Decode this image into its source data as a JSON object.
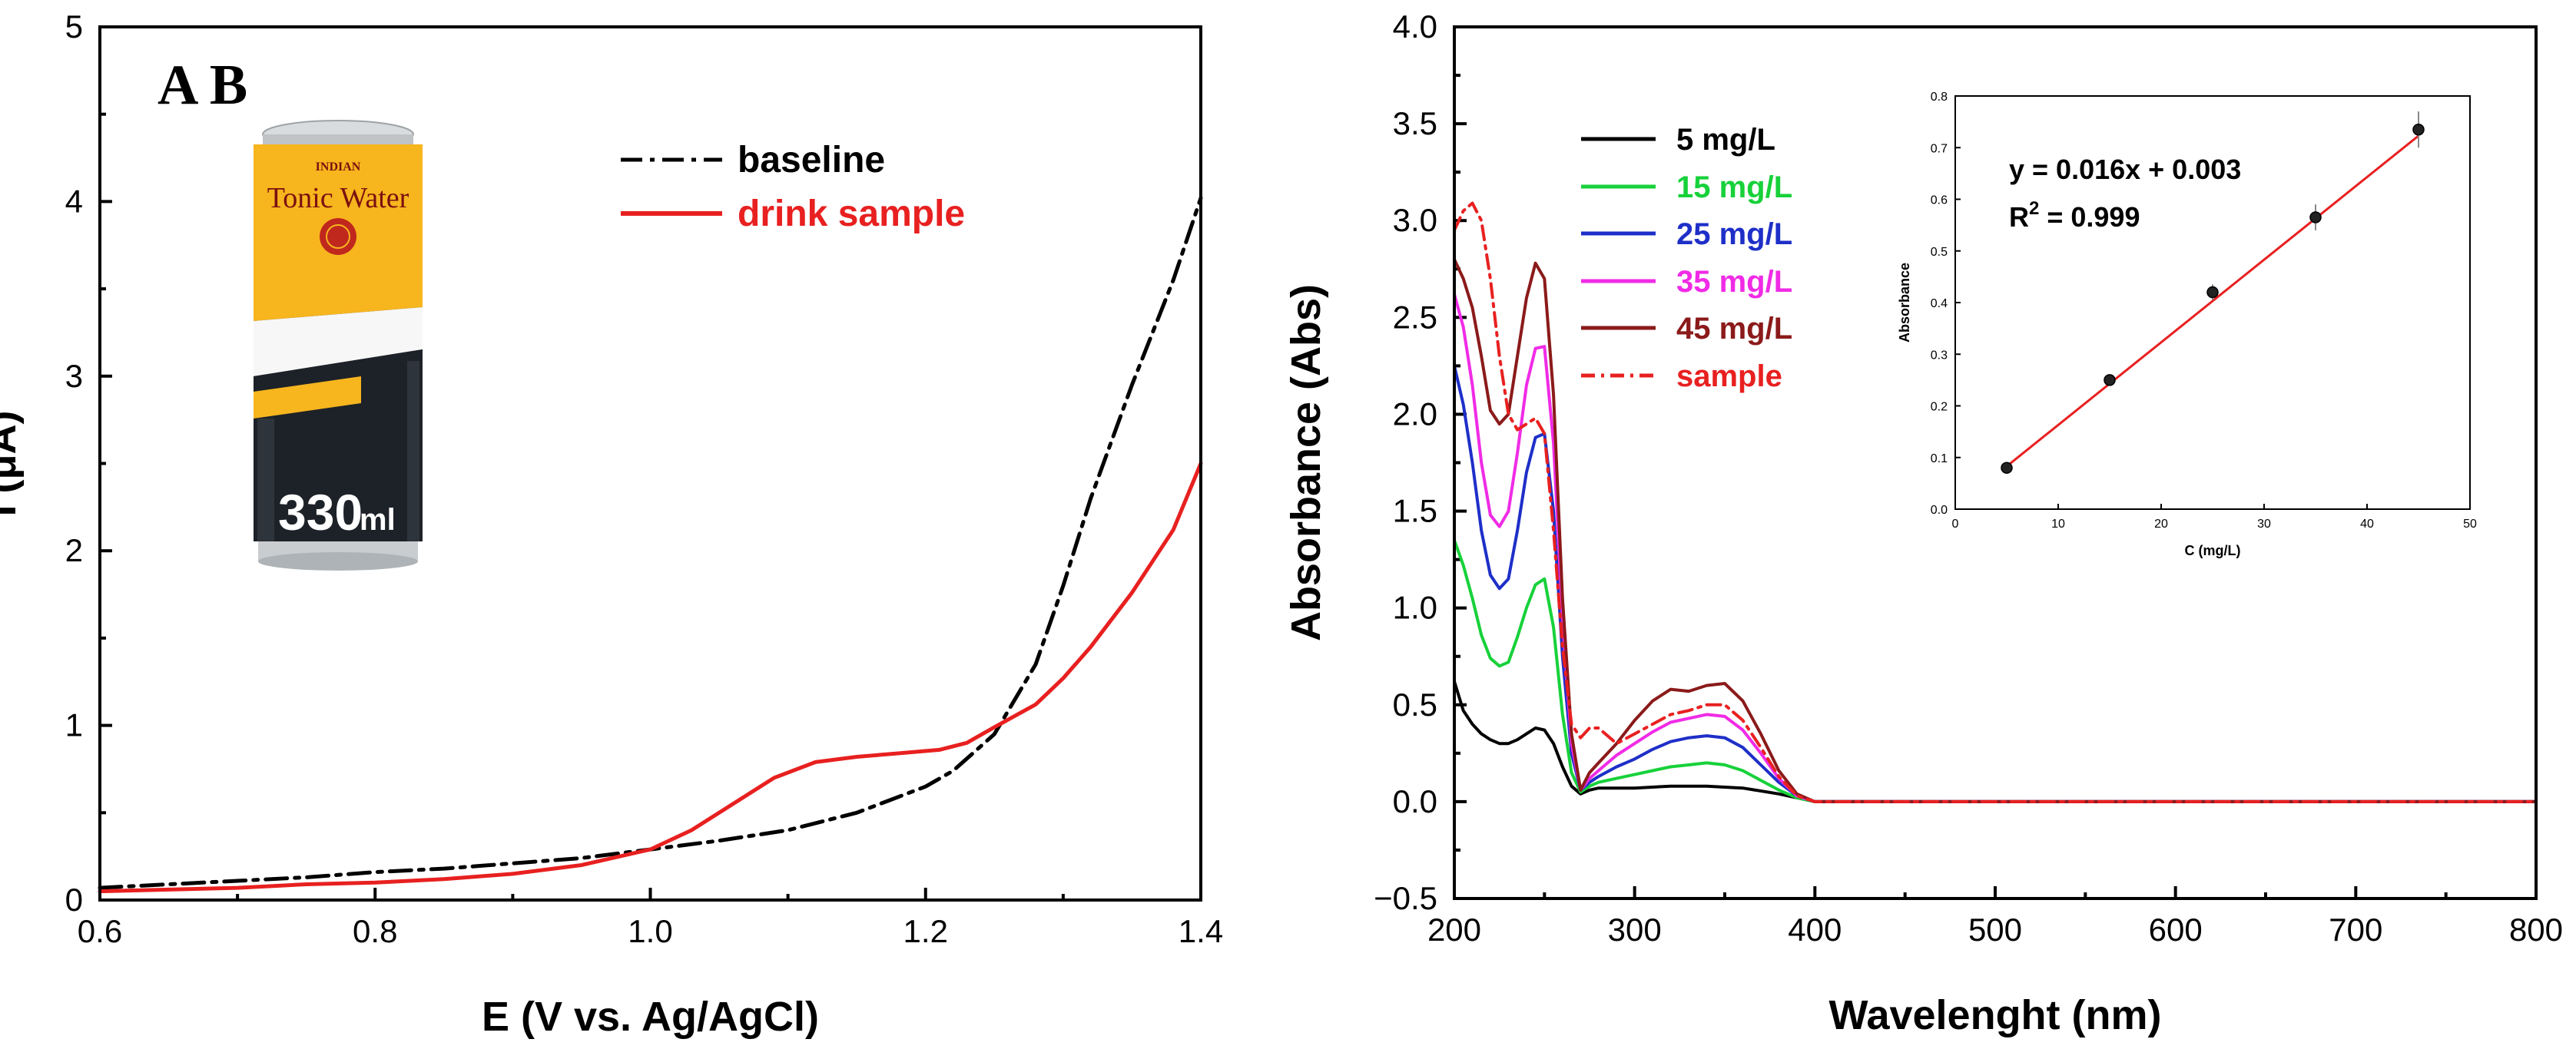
{
  "panel_labels": {
    "label": "A B"
  },
  "can": {
    "brand_small": "INDIAN",
    "product": "Tonic Water",
    "volume_number": "330",
    "volume_unit": "ml",
    "colors": {
      "yellow": "#F7B51E",
      "black": "#1D2228",
      "silver": "#C9CDD0"
    }
  },
  "chart_data": [
    {
      "id": "A",
      "type": "line",
      "title": "",
      "xlabel": "E (V vs. Ag/AgCl)",
      "ylabel": "I (μA)",
      "xlim": [
        0.6,
        1.4
      ],
      "ylim": [
        0,
        5
      ],
      "xticks": [
        0.6,
        0.8,
        1.0,
        1.2,
        1.4
      ],
      "xtick_labels": [
        "0.6",
        "0.8",
        "1.0",
        "1.2",
        "1.4"
      ],
      "yticks": [
        0,
        1,
        2,
        3,
        4,
        5
      ],
      "ytick_labels": [
        "0",
        "1",
        "2",
        "3",
        "4",
        "5"
      ],
      "legend_position": "top-center",
      "series": [
        {
          "name": "baseline",
          "color": "#000000",
          "style": "dash-dot",
          "x": [
            0.6,
            0.65,
            0.7,
            0.75,
            0.8,
            0.85,
            0.9,
            0.95,
            1.0,
            1.05,
            1.1,
            1.15,
            1.2,
            1.22,
            1.25,
            1.28,
            1.3,
            1.32,
            1.35,
            1.38,
            1.4
          ],
          "y": [
            0.07,
            0.09,
            0.11,
            0.13,
            0.16,
            0.18,
            0.21,
            0.24,
            0.29,
            0.34,
            0.4,
            0.5,
            0.65,
            0.74,
            0.95,
            1.35,
            1.8,
            2.3,
            2.95,
            3.55,
            4.02
          ]
        },
        {
          "name": "drink sample",
          "color": "#E82020",
          "style": "solid",
          "x": [
            0.6,
            0.65,
            0.7,
            0.75,
            0.8,
            0.85,
            0.9,
            0.95,
            1.0,
            1.03,
            1.06,
            1.09,
            1.12,
            1.15,
            1.18,
            1.21,
            1.23,
            1.25,
            1.28,
            1.3,
            1.32,
            1.35,
            1.38,
            1.4
          ],
          "y": [
            0.05,
            0.06,
            0.07,
            0.09,
            0.1,
            0.12,
            0.15,
            0.2,
            0.29,
            0.4,
            0.55,
            0.7,
            0.79,
            0.82,
            0.84,
            0.86,
            0.9,
            0.99,
            1.12,
            1.27,
            1.45,
            1.76,
            2.12,
            2.5
          ]
        }
      ]
    },
    {
      "id": "B",
      "type": "line",
      "title": "",
      "xlabel": "Wavelenght (nm)",
      "ylabel": "Absorbance (Abs)",
      "xlim": [
        200,
        800
      ],
      "ylim": [
        -0.5,
        4.0
      ],
      "xticks": [
        200,
        300,
        400,
        500,
        600,
        700,
        800
      ],
      "xtick_labels": [
        "200",
        "300",
        "400",
        "500",
        "600",
        "700",
        "800"
      ],
      "yticks": [
        -0.5,
        0.0,
        0.5,
        1.0,
        1.5,
        2.0,
        2.5,
        3.0,
        3.5,
        4.0
      ],
      "ytick_labels": [
        "−0.5",
        "0.0",
        "0.5",
        "1.0",
        "1.5",
        "2.0",
        "2.5",
        "3.0",
        "3.5",
        "4.0"
      ],
      "legend_position": "top-left",
      "series": [
        {
          "name": "5 mg/L",
          "color": "#000000",
          "style": "solid",
          "x": [
            200,
            205,
            210,
            215,
            220,
            225,
            230,
            235,
            240,
            245,
            250,
            255,
            260,
            265,
            270,
            275,
            280,
            300,
            320,
            340,
            360,
            380,
            400,
            500,
            600,
            700,
            800
          ],
          "y": [
            0.62,
            0.47,
            0.4,
            0.35,
            0.32,
            0.3,
            0.3,
            0.32,
            0.35,
            0.38,
            0.37,
            0.3,
            0.18,
            0.08,
            0.04,
            0.06,
            0.07,
            0.07,
            0.08,
            0.08,
            0.07,
            0.04,
            0.0,
            0.0,
            0.0,
            0.0,
            0.0
          ]
        },
        {
          "name": "15 mg/L",
          "color": "#17D13A",
          "style": "solid",
          "x": [
            200,
            205,
            210,
            215,
            220,
            225,
            230,
            235,
            240,
            245,
            250,
            255,
            260,
            265,
            270,
            275,
            280,
            290,
            300,
            310,
            320,
            330,
            340,
            350,
            360,
            370,
            380,
            390,
            400,
            500,
            600,
            700,
            800
          ],
          "y": [
            1.35,
            1.22,
            1.05,
            0.86,
            0.74,
            0.7,
            0.72,
            0.85,
            1.0,
            1.12,
            1.15,
            0.9,
            0.45,
            0.15,
            0.05,
            0.08,
            0.1,
            0.12,
            0.14,
            0.16,
            0.18,
            0.19,
            0.2,
            0.19,
            0.16,
            0.11,
            0.06,
            0.02,
            0.0,
            0.0,
            0.0,
            0.0,
            0.0
          ]
        },
        {
          "name": "25 mg/L",
          "color": "#1E2FC8",
          "style": "solid",
          "x": [
            200,
            205,
            210,
            215,
            220,
            225,
            230,
            235,
            240,
            245,
            250,
            255,
            260,
            265,
            270,
            275,
            280,
            290,
            300,
            310,
            320,
            330,
            340,
            350,
            360,
            370,
            380,
            390,
            400,
            500,
            600,
            700,
            800
          ],
          "y": [
            2.25,
            2.05,
            1.75,
            1.4,
            1.17,
            1.1,
            1.15,
            1.4,
            1.7,
            1.88,
            1.9,
            1.5,
            0.75,
            0.25,
            0.06,
            0.1,
            0.13,
            0.18,
            0.22,
            0.27,
            0.31,
            0.33,
            0.34,
            0.33,
            0.28,
            0.19,
            0.1,
            0.03,
            0.0,
            0.0,
            0.0,
            0.0,
            0.0
          ]
        },
        {
          "name": "35 mg/L",
          "color": "#F02BE6",
          "style": "solid",
          "x": [
            200,
            205,
            210,
            215,
            220,
            225,
            230,
            235,
            240,
            245,
            250,
            255,
            260,
            265,
            270,
            275,
            280,
            290,
            300,
            310,
            320,
            330,
            340,
            350,
            360,
            370,
            380,
            390,
            400,
            500,
            600,
            700,
            800
          ],
          "y": [
            2.62,
            2.45,
            2.15,
            1.75,
            1.48,
            1.42,
            1.5,
            1.8,
            2.15,
            2.34,
            2.35,
            1.85,
            0.95,
            0.3,
            0.06,
            0.12,
            0.16,
            0.24,
            0.3,
            0.36,
            0.41,
            0.43,
            0.45,
            0.44,
            0.37,
            0.25,
            0.12,
            0.03,
            0.0,
            0.0,
            0.0,
            0.0,
            0.0
          ]
        },
        {
          "name": "45 mg/L",
          "color": "#8B1A1A",
          "style": "solid",
          "x": [
            200,
            205,
            210,
            215,
            220,
            225,
            230,
            235,
            240,
            245,
            250,
            255,
            260,
            265,
            270,
            275,
            280,
            290,
            300,
            310,
            320,
            330,
            340,
            350,
            360,
            370,
            380,
            390,
            400,
            500,
            600,
            700,
            800
          ],
          "y": [
            2.8,
            2.7,
            2.55,
            2.3,
            2.02,
            1.95,
            2.0,
            2.3,
            2.6,
            2.78,
            2.7,
            2.1,
            1.05,
            0.35,
            0.06,
            0.15,
            0.2,
            0.3,
            0.42,
            0.52,
            0.58,
            0.57,
            0.6,
            0.61,
            0.52,
            0.35,
            0.16,
            0.04,
            0.0,
            0.0,
            0.0,
            0.0,
            0.0
          ]
        },
        {
          "name": "sample",
          "color": "#E82020",
          "style": "dash-dot",
          "x": [
            200,
            205,
            210,
            215,
            220,
            225,
            230,
            235,
            240,
            245,
            250,
            255,
            260,
            265,
            270,
            275,
            280,
            290,
            300,
            310,
            320,
            330,
            340,
            350,
            360,
            370,
            380,
            390,
            400,
            500,
            600,
            700,
            800
          ],
          "y": [
            2.95,
            3.05,
            3.09,
            3.0,
            2.7,
            2.3,
            2.0,
            1.92,
            1.95,
            1.98,
            1.9,
            1.4,
            0.8,
            0.4,
            0.33,
            0.38,
            0.38,
            0.3,
            0.35,
            0.4,
            0.45,
            0.47,
            0.5,
            0.5,
            0.42,
            0.28,
            0.13,
            0.03,
            0.0,
            0.0,
            0.0,
            0.0,
            0.0
          ]
        }
      ]
    },
    {
      "id": "B-inset",
      "type": "scatter",
      "title": "",
      "xlabel": "C (mg/L)",
      "ylabel": "Absorbance",
      "xlim": [
        0,
        50
      ],
      "ylim": [
        0.0,
        0.8
      ],
      "xticks": [
        0,
        10,
        20,
        30,
        40,
        50
      ],
      "xtick_labels": [
        "0",
        "10",
        "20",
        "30",
        "40",
        "50"
      ],
      "yticks": [
        0.0,
        0.1,
        0.2,
        0.3,
        0.4,
        0.5,
        0.6,
        0.7,
        0.8
      ],
      "ytick_labels": [
        "0.0",
        "0.1",
        "0.2",
        "0.3",
        "0.4",
        "0.5",
        "0.6",
        "0.7",
        "0.8"
      ],
      "points": {
        "x": [
          5,
          15,
          25,
          35,
          45
        ],
        "y": [
          0.08,
          0.25,
          0.42,
          0.565,
          0.735
        ],
        "err": [
          0.005,
          0.01,
          0.015,
          0.025,
          0.035
        ]
      },
      "fit": {
        "slope": 0.016,
        "intercept": 0.003,
        "color": "#E82020"
      },
      "annotations": {
        "equation": "y = 0.016x + 0.003",
        "r2_prefix": "R",
        "r2_sup": "2",
        "r2_suffix": " = 0.999"
      }
    }
  ]
}
